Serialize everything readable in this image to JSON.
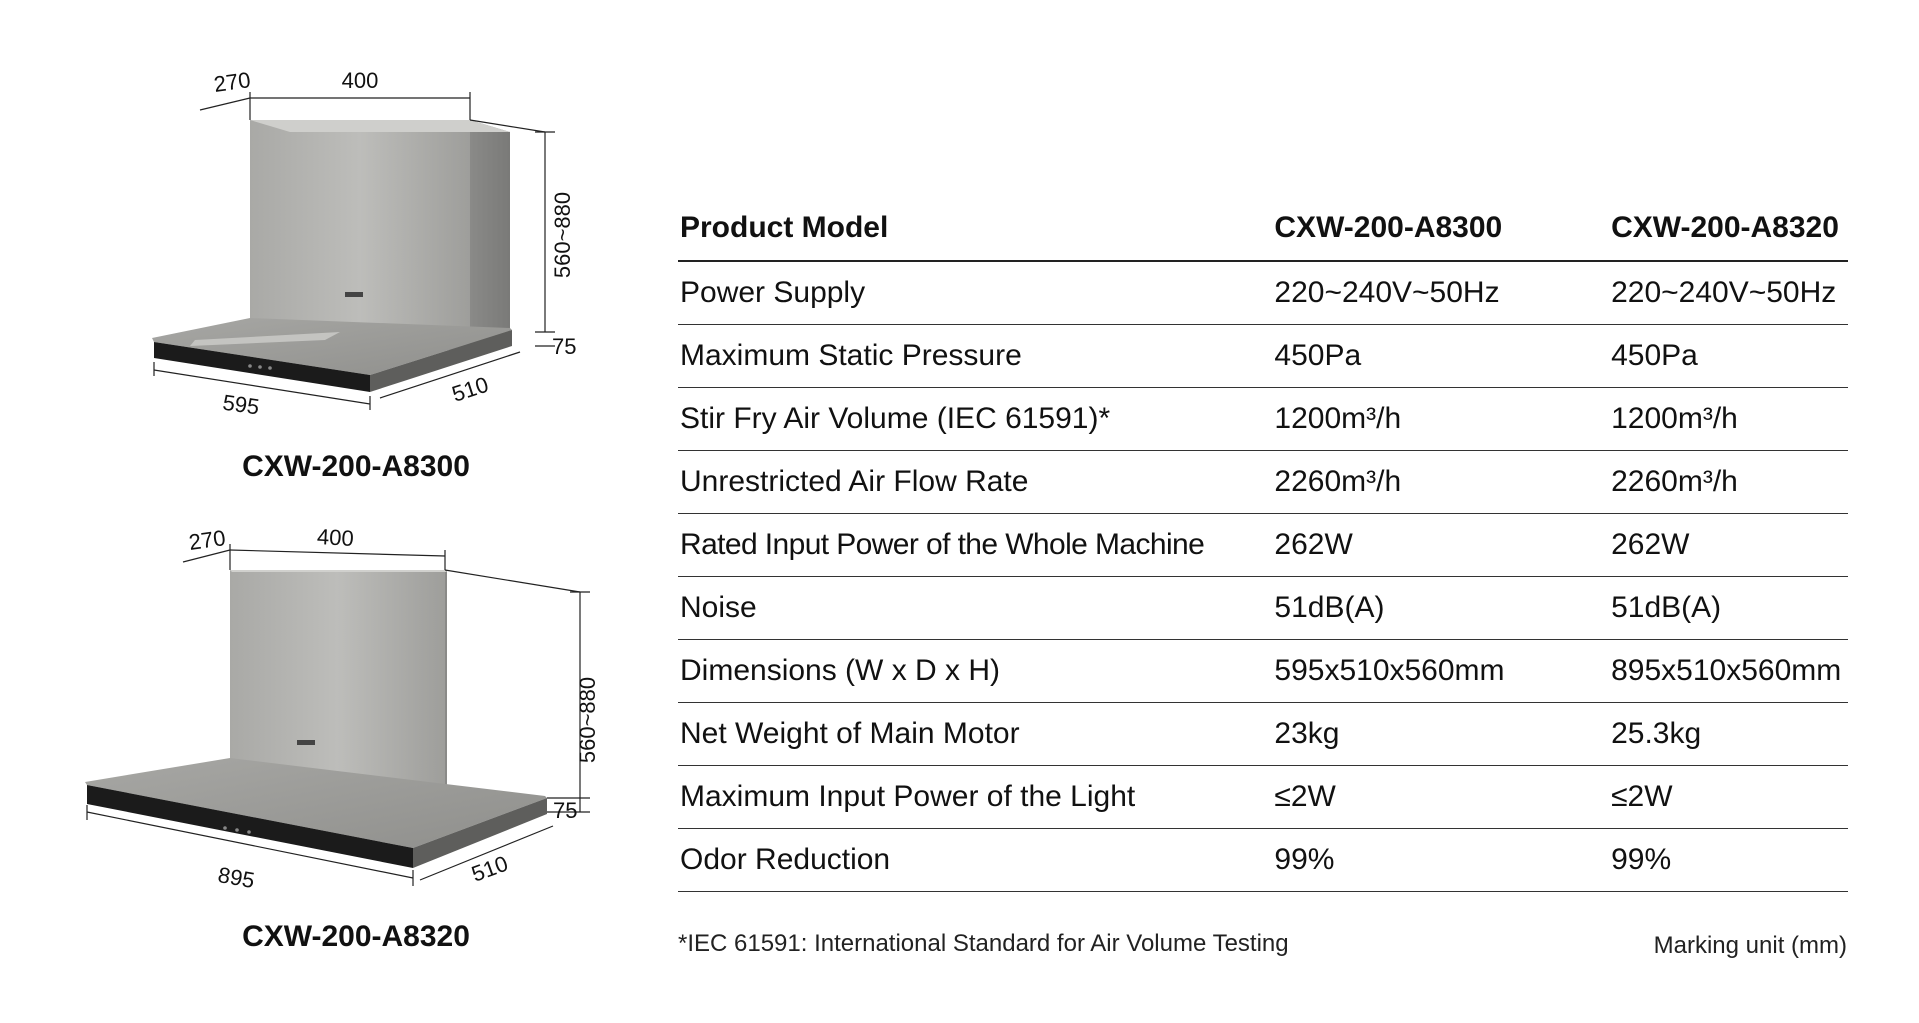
{
  "products": [
    {
      "caption": "CXW-200-A8300",
      "dims": {
        "top_depth": "270",
        "top_width": "400",
        "height": "560~880",
        "body": "75",
        "width": "595",
        "depth": "510"
      }
    },
    {
      "caption": "CXW-200-A8320",
      "dims": {
        "top_depth": "270",
        "top_width": "400",
        "height": "560~880",
        "body": "75",
        "width": "895",
        "depth": "510"
      }
    }
  ],
  "table": {
    "header": [
      "Product Model",
      "CXW-200-A8300",
      "CXW-200-A8320"
    ],
    "rows": [
      [
        "Power Supply",
        "220~240V~50Hz",
        "220~240V~50Hz"
      ],
      [
        "Maximum Static Pressure",
        "450Pa",
        "450Pa"
      ],
      [
        "Stir Fry Air Volume (IEC 61591)*",
        "1200m³/h",
        "1200m³/h"
      ],
      [
        "Unrestricted Air Flow Rate",
        "2260m³/h",
        "2260m³/h"
      ],
      [
        "Rated Input Power of the Whole Machine",
        "262W",
        "262W"
      ],
      [
        "Noise",
        "51dB(A)",
        "51dB(A)"
      ],
      [
        "Dimensions (W x D x H)",
        "595x510x560mm",
        "895x510x560mm"
      ],
      [
        "Net Weight of Main Motor",
        "23kg",
        "25.3kg"
      ],
      [
        "Maximum Input Power of the Light",
        "≤2W",
        "≤2W"
      ],
      [
        "Odor Reduction",
        "99%",
        "99%"
      ]
    ]
  },
  "footnote": "*IEC 61591: International Standard for Air Volume Testing",
  "unit_note": "Marking unit (mm)"
}
